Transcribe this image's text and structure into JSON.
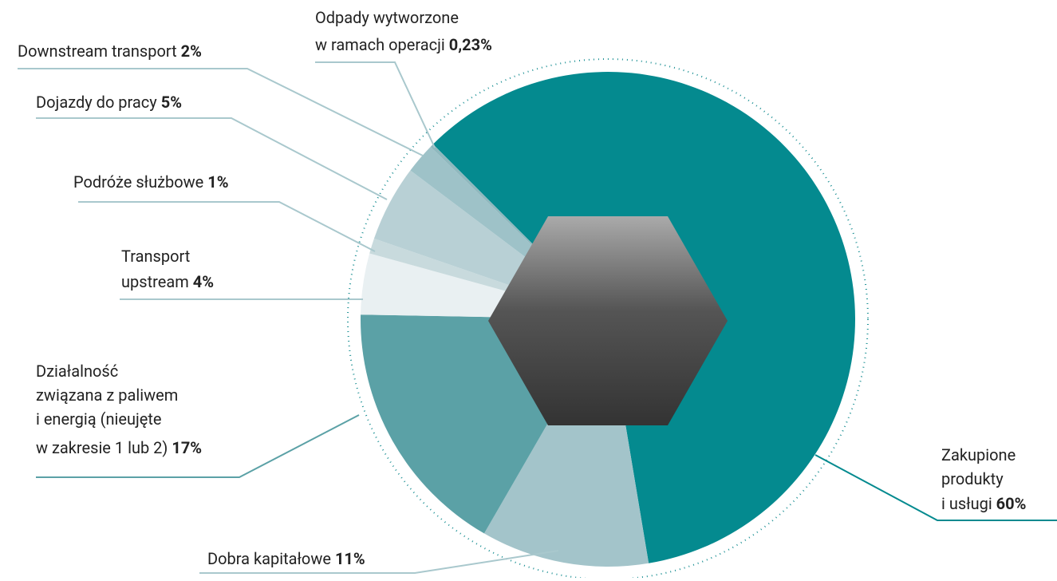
{
  "chart_data": {
    "type": "pie",
    "categories": [
      [
        "Zakupione",
        "produkty",
        "i usługi"
      ],
      [
        "Dobra kapitałowe"
      ],
      [
        "Działalność",
        "związana z paliwem",
        "i energią (nieujęte",
        "w zakresie 1 lub 2)"
      ],
      [
        "Transport",
        "upstream"
      ],
      [
        "Podróże służbowe"
      ],
      [
        "Dojazdy do pracy"
      ],
      [
        "Downstream transport"
      ],
      [
        "Odpady wytworzone",
        "w ramach operacji"
      ]
    ],
    "values": [
      60,
      11,
      17,
      4,
      1,
      5,
      2,
      0.23
    ],
    "value_labels": [
      "60%",
      "11%",
      "17%",
      "4%",
      "1%",
      "5%",
      "2%",
      "0,23%"
    ],
    "colors": [
      "#048a8f",
      "#a3c4ca",
      "#5ba1a6",
      "#e9f0f2",
      "#c8dadd",
      "#b8d0d5",
      "#9ec2c8",
      "#8fb8be"
    ]
  }
}
